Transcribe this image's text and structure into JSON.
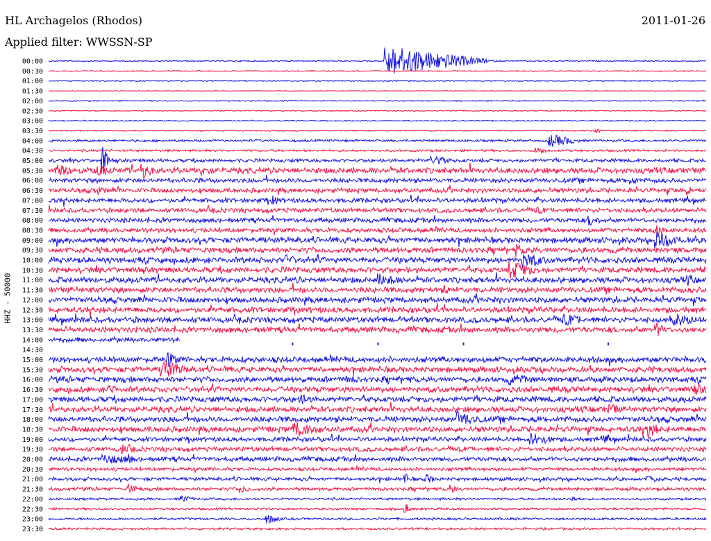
{
  "header": {
    "station": "HL Archagelos (Rhodos)",
    "date": "2011-01-26",
    "filter": "Applied filter: WWSSN-SP"
  },
  "chart_data": {
    "type": "line",
    "ylabel": "HHZ - 50000",
    "time_labels": [
      "00:00",
      "00:30",
      "01:00",
      "01:30",
      "02:00",
      "02:30",
      "03:00",
      "03:30",
      "04:00",
      "04:30",
      "05:00",
      "05:30",
      "06:00",
      "06:30",
      "07:00",
      "07:30",
      "08:00",
      "08:30",
      "09:00",
      "09:30",
      "10:00",
      "10:30",
      "11:00",
      "11:30",
      "12:00",
      "12:30",
      "13:00",
      "13:30",
      "14:00",
      "14:30",
      "15:00",
      "15:30",
      "16:00",
      "16:30",
      "17:00",
      "17:30",
      "18:00",
      "18:30",
      "19:00",
      "19:30",
      "20:00",
      "20:30",
      "21:00",
      "21:30",
      "22:00",
      "22:30",
      "23:00",
      "23:30"
    ],
    "colors": {
      "even": "#1010dd",
      "odd": "#ee1144"
    },
    "noise_level": [
      1,
      1,
      1,
      0.5,
      1,
      1,
      1,
      1,
      2,
      2,
      3,
      5,
      4,
      4,
      4,
      4,
      4,
      4,
      5,
      5,
      5,
      5,
      5,
      5,
      5,
      5,
      5,
      5,
      4,
      0,
      5,
      5,
      5,
      5,
      5,
      5,
      5,
      5,
      4,
      4,
      4,
      3,
      3,
      3,
      2,
      2,
      2,
      2
    ],
    "gap_rows": [
      29
    ],
    "partial_rows": [
      {
        "row": 28,
        "end": 0.2
      }
    ],
    "events": [
      {
        "row": 0,
        "x": 0.51,
        "amp": 22,
        "len": 0.06
      },
      {
        "row": 0,
        "x": 0.64,
        "amp": 4,
        "len": 0.01
      },
      {
        "row": 7,
        "x": 0.83,
        "amp": 5,
        "len": 0.005
      },
      {
        "row": 8,
        "x": 0.76,
        "amp": 10,
        "len": 0.02
      },
      {
        "row": 9,
        "x": 0.74,
        "amp": 6,
        "len": 0.01
      },
      {
        "row": 10,
        "x": 0.08,
        "amp": 24,
        "len": 0.005
      },
      {
        "row": 10,
        "x": 0.58,
        "amp": 8,
        "len": 0.015
      },
      {
        "row": 11,
        "x": 0.01,
        "amp": 10,
        "len": 0.02
      },
      {
        "row": 11,
        "x": 0.07,
        "amp": 9,
        "len": 0.015
      },
      {
        "row": 11,
        "x": 0.14,
        "amp": 14,
        "len": 0.01
      },
      {
        "row": 11,
        "x": 0.23,
        "amp": 8,
        "len": 0.015
      },
      {
        "row": 12,
        "x": 0.88,
        "amp": 7,
        "len": 0.01
      },
      {
        "row": 13,
        "x": 0.07,
        "amp": 8,
        "len": 0.01
      },
      {
        "row": 13,
        "x": 0.97,
        "amp": 7,
        "len": 0.01
      },
      {
        "row": 14,
        "x": 0.34,
        "amp": 10,
        "len": 0.005
      },
      {
        "row": 15,
        "x": 0.74,
        "amp": 7,
        "len": 0.01
      },
      {
        "row": 16,
        "x": 0.82,
        "amp": 9,
        "len": 0.01
      },
      {
        "row": 17,
        "x": 0.92,
        "amp": 10,
        "len": 0.01
      },
      {
        "row": 18,
        "x": 0.92,
        "amp": 14,
        "len": 0.02
      },
      {
        "row": 19,
        "x": 0.71,
        "amp": 10,
        "len": 0.01
      },
      {
        "row": 20,
        "x": 0.36,
        "amp": 9,
        "len": 0.01
      },
      {
        "row": 20,
        "x": 0.72,
        "amp": 12,
        "len": 0.02
      },
      {
        "row": 21,
        "x": 0.7,
        "amp": 14,
        "len": 0.02
      },
      {
        "row": 22,
        "x": 0.5,
        "amp": 10,
        "len": 0.02
      },
      {
        "row": 22,
        "x": 0.97,
        "amp": 9,
        "len": 0.01
      },
      {
        "row": 23,
        "x": 0.6,
        "amp": 8,
        "len": 0.01
      },
      {
        "row": 26,
        "x": 0.78,
        "amp": 10,
        "len": 0.02
      },
      {
        "row": 26,
        "x": 0.95,
        "amp": 10,
        "len": 0.02
      },
      {
        "row": 27,
        "x": 0.92,
        "amp": 12,
        "len": 0.01
      },
      {
        "row": 28,
        "x": 0.1,
        "amp": 5,
        "len": 0.01
      },
      {
        "row": 30,
        "x": 0.18,
        "amp": 12,
        "len": 0.01
      },
      {
        "row": 31,
        "x": 0.17,
        "amp": 14,
        "len": 0.02
      },
      {
        "row": 32,
        "x": 0.45,
        "amp": 8,
        "len": 0.01
      },
      {
        "row": 32,
        "x": 0.7,
        "amp": 9,
        "len": 0.02
      },
      {
        "row": 33,
        "x": 0.09,
        "amp": 8,
        "len": 0.01
      },
      {
        "row": 33,
        "x": 0.98,
        "amp": 9,
        "len": 0.015
      },
      {
        "row": 34,
        "x": 0.38,
        "amp": 10,
        "len": 0.01
      },
      {
        "row": 35,
        "x": 0.85,
        "amp": 10,
        "len": 0.01
      },
      {
        "row": 36,
        "x": 0.62,
        "amp": 12,
        "len": 0.02
      },
      {
        "row": 37,
        "x": 0.37,
        "amp": 14,
        "len": 0.02
      },
      {
        "row": 37,
        "x": 0.91,
        "amp": 14,
        "len": 0.01
      },
      {
        "row": 38,
        "x": 0.73,
        "amp": 10,
        "len": 0.02
      },
      {
        "row": 38,
        "x": 0.84,
        "amp": 8,
        "len": 0.01
      },
      {
        "row": 39,
        "x": 0.11,
        "amp": 10,
        "len": 0.01
      },
      {
        "row": 40,
        "x": 0.08,
        "amp": 8,
        "len": 0.03
      },
      {
        "row": 40,
        "x": 0.12,
        "amp": 10,
        "len": 0.005
      },
      {
        "row": 42,
        "x": 0.54,
        "amp": 10,
        "len": 0.005
      },
      {
        "row": 42,
        "x": 0.57,
        "amp": 8,
        "len": 0.01
      },
      {
        "row": 42,
        "x": 0.91,
        "amp": 7,
        "len": 0.01
      },
      {
        "row": 43,
        "x": 0.12,
        "amp": 8,
        "len": 0.01
      },
      {
        "row": 43,
        "x": 0.29,
        "amp": 6,
        "len": 0.01
      },
      {
        "row": 43,
        "x": 0.61,
        "amp": 9,
        "len": 0.005
      },
      {
        "row": 44,
        "x": 0.2,
        "amp": 6,
        "len": 0.01
      },
      {
        "row": 44,
        "x": 0.79,
        "amp": 5,
        "len": 0.01
      },
      {
        "row": 45,
        "x": 0.54,
        "amp": 10,
        "len": 0.005
      },
      {
        "row": 46,
        "x": 0.33,
        "amp": 8,
        "len": 0.01
      }
    ]
  }
}
